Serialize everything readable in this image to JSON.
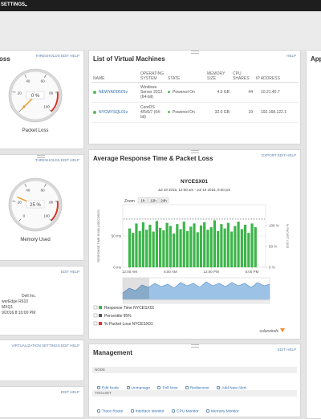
{
  "top_bar": {
    "menu": "SETTINGS"
  },
  "left_panels": [
    {
      "title": "oss",
      "links": "THRESHOLDS EDIT HELP",
      "gauge": {
        "value": 0,
        "label": "0 %",
        "ticks": [
          0,
          20,
          40,
          60,
          80,
          100
        ],
        "caption": "Packet Loss"
      }
    },
    {
      "links": "THRESHOLDS EDIT HELP",
      "gauge": {
        "value": 25,
        "label": "25 %",
        "ticks": [
          0,
          20,
          40,
          60,
          80,
          100
        ],
        "caption": "Memory Used"
      }
    },
    {
      "links": "EDIT HELP",
      "lines": [
        "Dell Inc.",
        "werEdge R610",
        "MXQ1",
        "9/2016 8:10:00 PM"
      ]
    },
    {
      "links": "VIRTUALIZATION SETTINGS EDIT HELP"
    },
    {
      "links": "EDIT HELP"
    }
  ],
  "vm_panel": {
    "title": "List of Virtual Machines",
    "links": "HELP",
    "headers": [
      "NAME",
      "OPERATING SYSTEM",
      "STATE",
      "MEMORY SIZE",
      "CPU SHARES",
      "IP ADDRESS"
    ],
    "rows": [
      [
        "NEWYADD501v",
        "Windows Server 2012 (64-bit)",
        "Powered On",
        "4.0 GB",
        "44",
        "10.21.40.7"
      ],
      [
        "NYCMYSQL01v",
        "CentOS 4/5/6/7 (64-bit)",
        "Powered On",
        "32.0 GB",
        "19",
        "192.168.122.1"
      ]
    ]
  },
  "chart_panel": {
    "title": "Average Response Time & Packet Loss",
    "links": "EXPORT EDIT HELP",
    "chart": {
      "type": "bar",
      "title": "NYCESX01",
      "subtitle": "Jul 19 2016, 12:00 am - Jul 19 2016, 8:00 pm",
      "zoom_label": "Zoom",
      "zoom": [
        "1h",
        "12h",
        "24h"
      ],
      "y_label": "RESPONSE TIME IN MILLISECONDS",
      "y2_label": "% PACKET LOSS",
      "ylim": [
        0,
        100
      ],
      "yticks": [
        {
          "value": 0,
          "label": "0 ms"
        },
        {
          "value": 50,
          "label": "50 ms"
        }
      ],
      "y2lim": [
        0,
        150
      ],
      "y2ticks": [
        {
          "value": 0,
          "label": "0 %"
        },
        {
          "value": 50,
          "label": "50 %"
        },
        {
          "value": 100,
          "label": "100 %"
        }
      ],
      "xlim": [
        -1,
        20
      ],
      "xticks": [
        {
          "value": 0,
          "label": "12:00 AM"
        },
        {
          "value": 6,
          "label": "6:00 AM"
        },
        {
          "value": 12,
          "label": "12:00 PM"
        },
        {
          "value": 18,
          "label": "6:00 PM"
        }
      ],
      "x": [
        0,
        0.5,
        1,
        1.5,
        2,
        2.5,
        3,
        3.5,
        4,
        4.5,
        5,
        5.5,
        6,
        6.5,
        7,
        7.5,
        8,
        8.5,
        9,
        9.5,
        10,
        10.5,
        11,
        11.5,
        12,
        12.5,
        13,
        13.5,
        14,
        14.5,
        15,
        15.5,
        16,
        16.5,
        17,
        17.5,
        18,
        18.5
      ],
      "values": [
        62,
        55,
        70,
        58,
        72,
        60,
        68,
        57,
        74,
        63,
        59,
        71,
        66,
        54,
        69,
        61,
        73,
        58,
        65,
        70,
        56,
        67,
        72,
        60,
        64,
        75,
        58,
        69,
        62,
        71,
        57,
        66,
        73,
        61,
        68,
        55,
        70,
        64
      ],
      "percentile_95": 77,
      "series": [
        {
          "name": "Response Time NYCESX01",
          "color": "#3db54a"
        },
        {
          "name": "Percentile 95%",
          "color": "#555555"
        },
        {
          "name": "% Packet Loss NYCESX01",
          "color": "#e0312b"
        }
      ],
      "brand": "solarwinds"
    }
  },
  "management": {
    "title": "Management",
    "links": "EDIT HELP",
    "sections": [
      {
        "name": "NODE",
        "items": [
          "Edit Node",
          "Unmanage",
          "Poll Now",
          "Rediscover",
          "Add New Alert"
        ]
      },
      {
        "name": "TOOLSET",
        "items": [
          "Trace Route",
          "Interface Monitor",
          "CPU Monitor",
          "Memory Monitor"
        ]
      }
    ]
  },
  "right_panel": {
    "title": "App"
  }
}
